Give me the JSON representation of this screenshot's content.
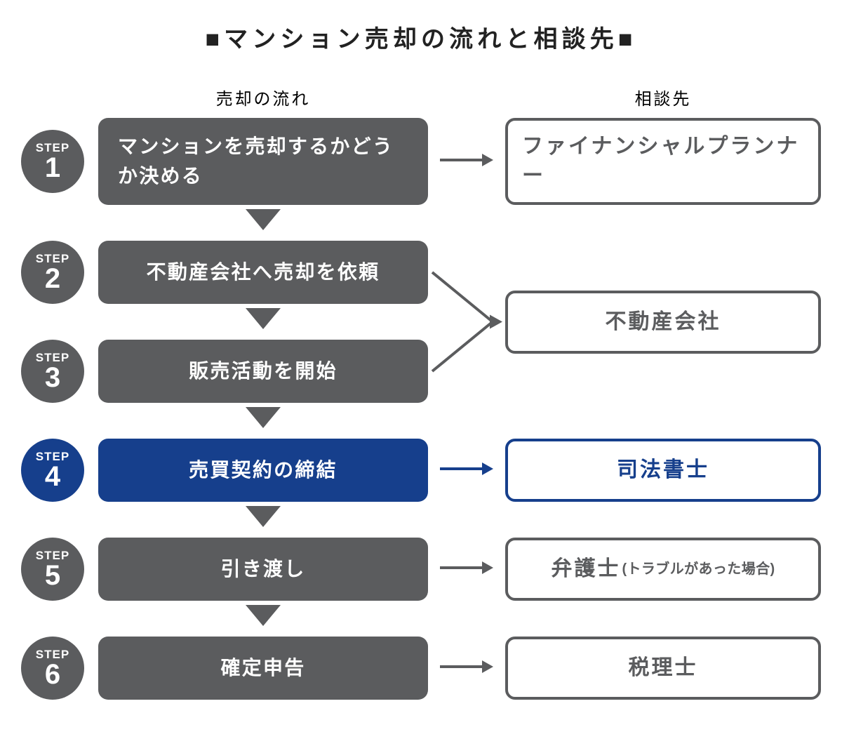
{
  "title": "■マンション売却の流れと相談先■",
  "columns": {
    "left": "売却の流れ",
    "right": "相談先"
  },
  "step_label": "STEP",
  "colors": {
    "dark": "#5b5c5e",
    "accent": "#163f8c",
    "title": "#222222",
    "bg": "#ffffff"
  },
  "font": {
    "title_size": 34,
    "header_size": 24,
    "step_box_size": 28,
    "consult_size": 30,
    "badge_label_size": 17,
    "badge_num_size": 40,
    "sub_size": 20
  },
  "layout": {
    "badge_diameter": 90,
    "step_box_width": 470,
    "arrow_gap_width": 110,
    "consult_box_width": 450,
    "border_radius": 14,
    "consult_border_width": 4,
    "row_gap": 38,
    "tri_w": 50,
    "tri_h": 30
  },
  "steps": [
    {
      "n": "1",
      "text": "マンションを売却するかどうか決める",
      "align": "left",
      "highlight": false,
      "tall": true
    },
    {
      "n": "2",
      "text": "不動産会社へ売却を依頼",
      "align": "center",
      "highlight": false,
      "tall": false
    },
    {
      "n": "3",
      "text": "販売活動を開始",
      "align": "center",
      "highlight": false,
      "tall": false
    },
    {
      "n": "4",
      "text": "売買契約の締結",
      "align": "center",
      "highlight": true,
      "tall": false
    },
    {
      "n": "5",
      "text": "引き渡し",
      "align": "center",
      "highlight": false,
      "tall": false
    },
    {
      "n": "6",
      "text": "確定申告",
      "align": "center",
      "highlight": false,
      "tall": false
    }
  ],
  "consultants": [
    {
      "for_step": 1,
      "text": "ファイナンシャルプランナー",
      "sub": "",
      "highlight": false,
      "align": "left",
      "tall": true
    },
    {
      "for_step": 4,
      "text": "司法書士",
      "sub": "",
      "highlight": true,
      "align": "center",
      "tall": false
    },
    {
      "for_step": 5,
      "text": "弁護士",
      "sub": "(トラブルがあった場合)",
      "highlight": false,
      "align": "center",
      "tall": false
    },
    {
      "for_step": 6,
      "text": "税理士",
      "sub": "",
      "highlight": false,
      "align": "center",
      "tall": false
    }
  ],
  "merged_consultant": {
    "for_steps": [
      2,
      3
    ],
    "text": "不動産会社",
    "highlight": false
  }
}
